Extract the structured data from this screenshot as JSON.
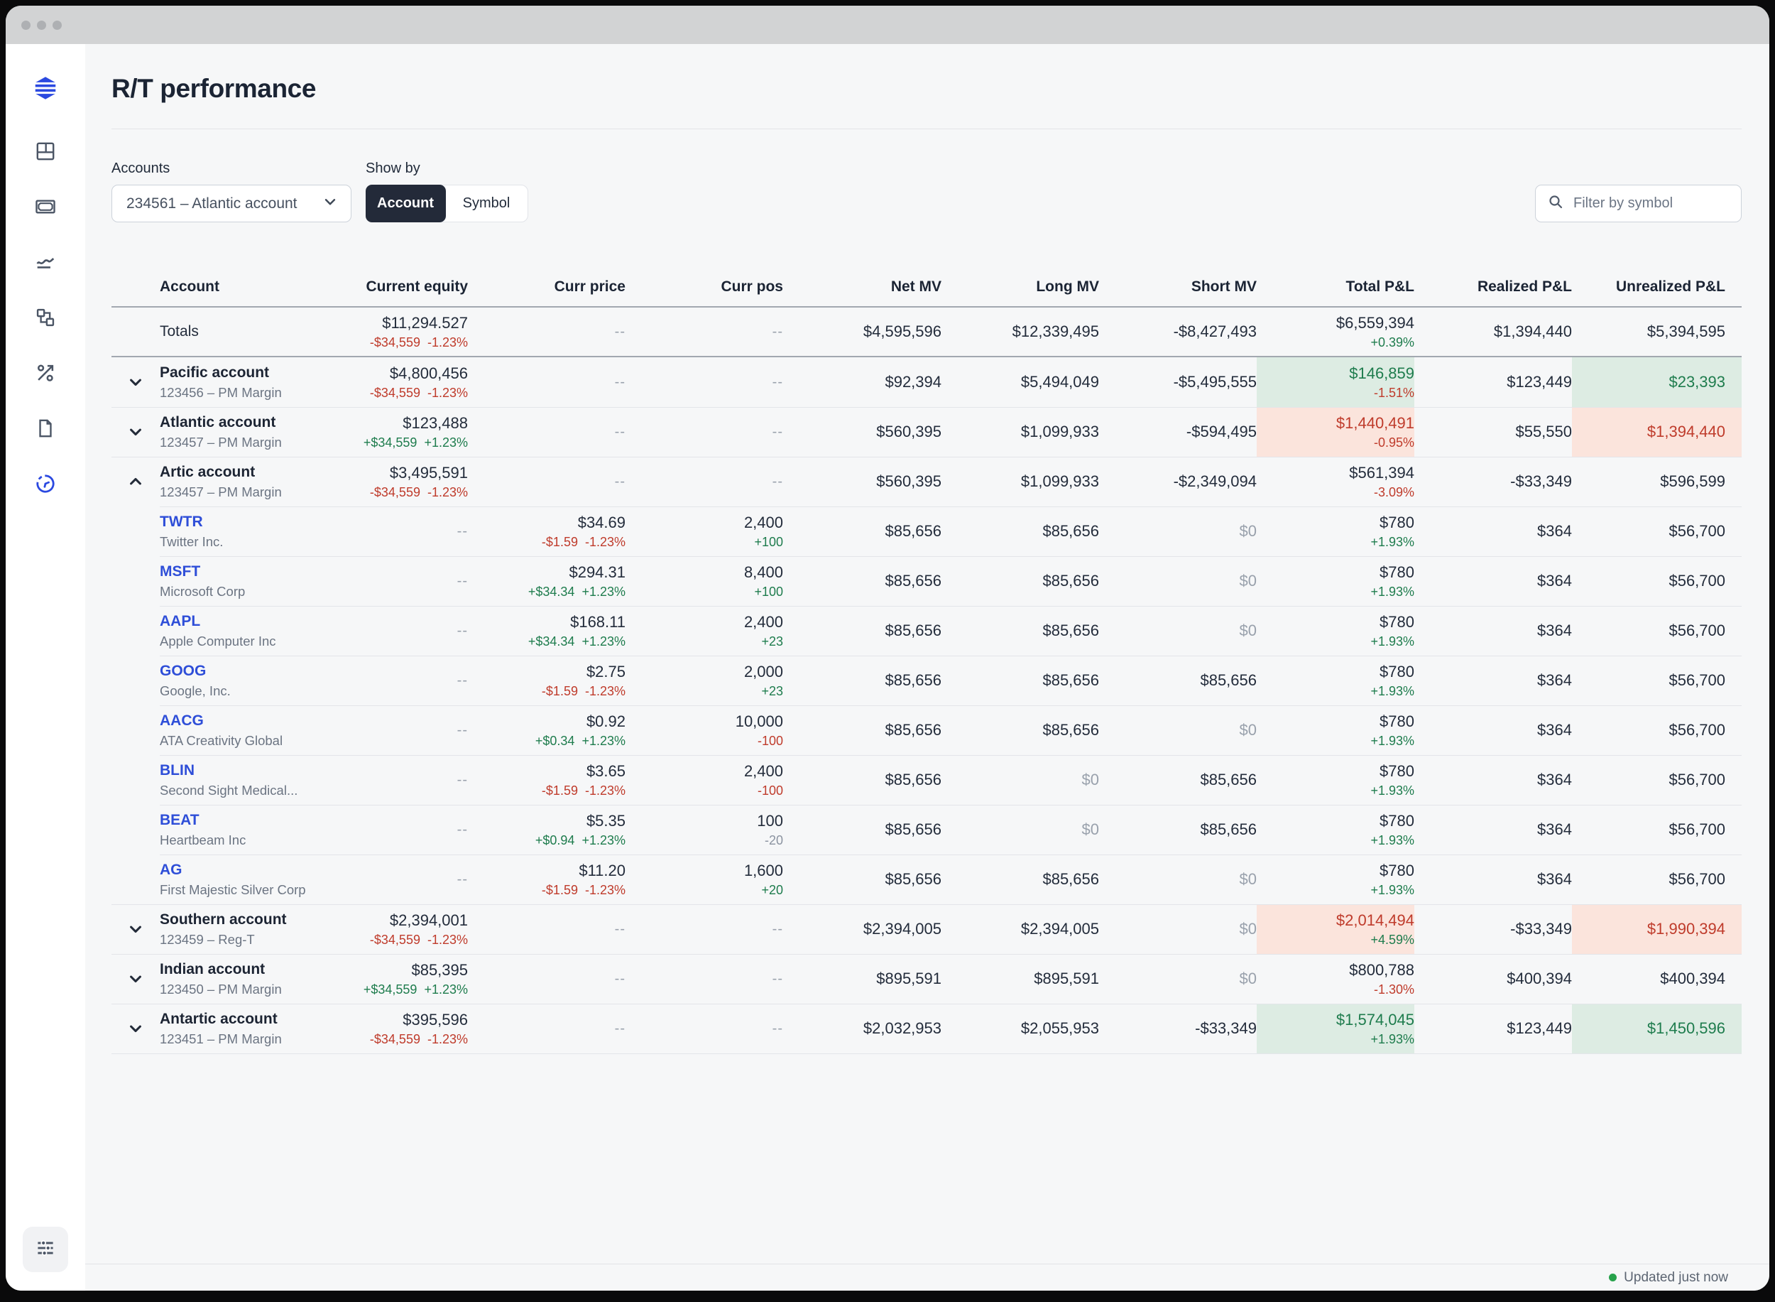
{
  "window": {
    "title_dots": 3
  },
  "header": {
    "title": "R/T performance"
  },
  "sidebar": {
    "icons": [
      "dashboard",
      "cash",
      "performance",
      "blocks",
      "rates",
      "documents",
      "history"
    ],
    "active": "history",
    "bottom_icon": "filters"
  },
  "controls": {
    "accounts_label": "Accounts",
    "accounts_value": "234561 – Atlantic account",
    "show_by_label": "Show by",
    "show_by_options": [
      "Account",
      "Symbol"
    ],
    "show_by_selected": "Account",
    "filter_placeholder": "Filter by symbol"
  },
  "colors": {
    "accent_blue": "#2b49e0",
    "link_blue": "#2e4ed8",
    "positive_green": "#1e7c4d",
    "negative_red": "#bf3b2b",
    "highlight_green_bg": "#ddece3",
    "highlight_red_bg": "#fbe4dc"
  },
  "table": {
    "dash": "--",
    "columns": [
      "Account",
      "Current equity",
      "Curr price",
      "Curr pos",
      "Net MV",
      "Long MV",
      "Short MV",
      "Total P&L",
      "Realized P&L",
      "Unrealized P&L"
    ],
    "rows": [
      {
        "type": "totals",
        "name": "Totals",
        "equity": {
          "main": "$11,294.527",
          "sub": "-$34,559  -1.23%",
          "subTone": "red"
        },
        "price": {
          "dash": true
        },
        "pos": {
          "dash": true
        },
        "net": {
          "v": "$4,595,596"
        },
        "long": {
          "v": "$12,339,495"
        },
        "short": {
          "v": "-$8,427,493"
        },
        "total": {
          "main": "$6,559,394",
          "tone": "dark",
          "sub": "+0.39%",
          "subTone": "green",
          "bg": ""
        },
        "realized": {
          "v": "$1,394,440"
        },
        "unrealized": {
          "v": "$5,394,595",
          "tone": "dark",
          "bg": ""
        }
      },
      {
        "type": "account",
        "name": "Pacific account",
        "subtitle": "123456 – PM Margin",
        "expanded": false,
        "equity": {
          "main": "$4,800,456",
          "sub": "-$34,559  -1.23%",
          "subTone": "red"
        },
        "price": {
          "dash": true
        },
        "pos": {
          "dash": true
        },
        "net": {
          "v": "$92,394"
        },
        "long": {
          "v": "$5,494,049"
        },
        "short": {
          "v": "-$5,495,555"
        },
        "total": {
          "main": "$146,859",
          "tone": "green",
          "sub": "-1.51%",
          "subTone": "red",
          "bg": "green"
        },
        "realized": {
          "v": "$123,449"
        },
        "unrealized": {
          "v": "$23,393",
          "tone": "green",
          "bg": "green"
        }
      },
      {
        "type": "account",
        "name": "Atlantic account",
        "subtitle": "123457 – PM Margin",
        "expanded": false,
        "equity": {
          "main": "$123,488",
          "sub": "+$34,559  +1.23%",
          "subTone": "green"
        },
        "price": {
          "dash": true
        },
        "pos": {
          "dash": true
        },
        "net": {
          "v": "$560,395"
        },
        "long": {
          "v": "$1,099,933"
        },
        "short": {
          "v": "-$594,495"
        },
        "total": {
          "main": "$1,440,491",
          "tone": "red",
          "sub": "-0.95%",
          "subTone": "red",
          "bg": "red"
        },
        "realized": {
          "v": "$55,550"
        },
        "unrealized": {
          "v": "$1,394,440",
          "tone": "red",
          "bg": "red"
        }
      },
      {
        "type": "account",
        "name": "Artic account",
        "subtitle": "123457 – PM Margin",
        "expanded": true,
        "equity": {
          "main": "$3,495,591",
          "sub": "-$34,559  -1.23%",
          "subTone": "red"
        },
        "price": {
          "dash": true
        },
        "pos": {
          "dash": true
        },
        "net": {
          "v": "$560,395"
        },
        "long": {
          "v": "$1,099,933"
        },
        "short": {
          "v": "-$2,349,094"
        },
        "total": {
          "main": "$561,394",
          "tone": "dark",
          "sub": "-3.09%",
          "subTone": "red",
          "bg": ""
        },
        "realized": {
          "v": "-$33,349"
        },
        "unrealized": {
          "v": "$596,599",
          "tone": "dark",
          "bg": ""
        }
      },
      {
        "type": "symbol",
        "ticker": "TWTR",
        "company": "Twitter Inc.",
        "equity": {
          "dash": true
        },
        "price": {
          "main": "$34.69",
          "sub": "-$1.59  -1.23%",
          "subTone": "red"
        },
        "pos": {
          "main": "2,400",
          "sub": "+100",
          "subTone": "green"
        },
        "net": {
          "v": "$85,656"
        },
        "long": {
          "v": "$85,656"
        },
        "short": {
          "v": "$0",
          "muted": true
        },
        "total": {
          "main": "$780",
          "tone": "dark",
          "sub": "+1.93%",
          "subTone": "green",
          "bg": ""
        },
        "realized": {
          "v": "$364"
        },
        "unrealized": {
          "v": "$56,700",
          "tone": "dark",
          "bg": ""
        }
      },
      {
        "type": "symbol",
        "ticker": "MSFT",
        "company": "Microsoft Corp",
        "equity": {
          "dash": true
        },
        "price": {
          "main": "$294.31",
          "sub": "+$34.34  +1.23%",
          "subTone": "green"
        },
        "pos": {
          "main": "8,400",
          "sub": "+100",
          "subTone": "green"
        },
        "net": {
          "v": "$85,656"
        },
        "long": {
          "v": "$85,656"
        },
        "short": {
          "v": "$0",
          "muted": true
        },
        "total": {
          "main": "$780",
          "tone": "dark",
          "sub": "+1.93%",
          "subTone": "green",
          "bg": ""
        },
        "realized": {
          "v": "$364"
        },
        "unrealized": {
          "v": "$56,700",
          "tone": "dark",
          "bg": ""
        }
      },
      {
        "type": "symbol",
        "ticker": "AAPL",
        "company": "Apple Computer Inc",
        "equity": {
          "dash": true
        },
        "price": {
          "main": "$168.11",
          "sub": "+$34.34  +1.23%",
          "subTone": "green"
        },
        "pos": {
          "main": "2,400",
          "sub": "+23",
          "subTone": "green"
        },
        "net": {
          "v": "$85,656"
        },
        "long": {
          "v": "$85,656"
        },
        "short": {
          "v": "$0",
          "muted": true
        },
        "total": {
          "main": "$780",
          "tone": "dark",
          "sub": "+1.93%",
          "subTone": "green",
          "bg": ""
        },
        "realized": {
          "v": "$364"
        },
        "unrealized": {
          "v": "$56,700",
          "tone": "dark",
          "bg": ""
        }
      },
      {
        "type": "symbol",
        "ticker": "GOOG",
        "company": "Google, Inc.",
        "equity": {
          "dash": true
        },
        "price": {
          "main": "$2.75",
          "sub": "-$1.59  -1.23%",
          "subTone": "red"
        },
        "pos": {
          "main": "2,000",
          "sub": "+23",
          "subTone": "green"
        },
        "net": {
          "v": "$85,656"
        },
        "long": {
          "v": "$85,656"
        },
        "short": {
          "v": "$85,656"
        },
        "total": {
          "main": "$780",
          "tone": "dark",
          "sub": "+1.93%",
          "subTone": "green",
          "bg": ""
        },
        "realized": {
          "v": "$364"
        },
        "unrealized": {
          "v": "$56,700",
          "tone": "dark",
          "bg": ""
        }
      },
      {
        "type": "symbol",
        "ticker": "AACG",
        "company": "ATA Creativity Global",
        "equity": {
          "dash": true
        },
        "price": {
          "main": "$0.92",
          "sub": "+$0.34  +1.23%",
          "subTone": "green"
        },
        "pos": {
          "main": "10,000",
          "sub": "-100",
          "subTone": "red"
        },
        "net": {
          "v": "$85,656"
        },
        "long": {
          "v": "$85,656"
        },
        "short": {
          "v": "$0",
          "muted": true
        },
        "total": {
          "main": "$780",
          "tone": "dark",
          "sub": "+1.93%",
          "subTone": "green",
          "bg": ""
        },
        "realized": {
          "v": "$364"
        },
        "unrealized": {
          "v": "$56,700",
          "tone": "dark",
          "bg": ""
        }
      },
      {
        "type": "symbol",
        "ticker": "BLIN",
        "company": "Second Sight Medical...",
        "equity": {
          "dash": true
        },
        "price": {
          "main": "$3.65",
          "sub": "-$1.59  -1.23%",
          "subTone": "red"
        },
        "pos": {
          "main": "2,400",
          "sub": "-100",
          "subTone": "red"
        },
        "net": {
          "v": "$85,656"
        },
        "long": {
          "v": "$0",
          "muted": true
        },
        "short": {
          "v": "$85,656"
        },
        "total": {
          "main": "$780",
          "tone": "dark",
          "sub": "+1.93%",
          "subTone": "green",
          "bg": ""
        },
        "realized": {
          "v": "$364"
        },
        "unrealized": {
          "v": "$56,700",
          "tone": "dark",
          "bg": ""
        }
      },
      {
        "type": "symbol",
        "ticker": "BEAT",
        "company": "Heartbeam Inc",
        "equity": {
          "dash": true
        },
        "price": {
          "main": "$5.35",
          "sub": "+$0.94  +1.23%",
          "subTone": "green"
        },
        "pos": {
          "main": "100",
          "sub": "-20",
          "subTone": "gray"
        },
        "net": {
          "v": "$85,656"
        },
        "long": {
          "v": "$0",
          "muted": true
        },
        "short": {
          "v": "$85,656"
        },
        "total": {
          "main": "$780",
          "tone": "dark",
          "sub": "+1.93%",
          "subTone": "green",
          "bg": ""
        },
        "realized": {
          "v": "$364"
        },
        "unrealized": {
          "v": "$56,700",
          "tone": "dark",
          "bg": ""
        }
      },
      {
        "type": "symbol",
        "ticker": "AG",
        "company": "First Majestic Silver Corp",
        "equity": {
          "dash": true
        },
        "price": {
          "main": "$11.20",
          "sub": "-$1.59  -1.23%",
          "subTone": "red"
        },
        "pos": {
          "main": "1,600",
          "sub": "+20",
          "subTone": "green"
        },
        "net": {
          "v": "$85,656"
        },
        "long": {
          "v": "$85,656"
        },
        "short": {
          "v": "$0",
          "muted": true
        },
        "total": {
          "main": "$780",
          "tone": "dark",
          "sub": "+1.93%",
          "subTone": "green",
          "bg": ""
        },
        "realized": {
          "v": "$364"
        },
        "unrealized": {
          "v": "$56,700",
          "tone": "dark",
          "bg": ""
        }
      },
      {
        "type": "account",
        "name": "Southern account",
        "subtitle": "123459 – Reg-T",
        "expanded": false,
        "equity": {
          "main": "$2,394,001",
          "sub": "-$34,559  -1.23%",
          "subTone": "red"
        },
        "price": {
          "dash": true
        },
        "pos": {
          "dash": true
        },
        "net": {
          "v": "$2,394,005"
        },
        "long": {
          "v": "$2,394,005"
        },
        "short": {
          "v": "$0",
          "muted": true
        },
        "total": {
          "main": "$2,014,494",
          "tone": "red",
          "sub": "+4.59%",
          "subTone": "green",
          "bg": "red"
        },
        "realized": {
          "v": "-$33,349"
        },
        "unrealized": {
          "v": "$1,990,394",
          "tone": "red",
          "bg": "red"
        }
      },
      {
        "type": "account",
        "name": "Indian account",
        "subtitle": "123450 – PM Margin",
        "expanded": false,
        "equity": {
          "main": "$85,395",
          "sub": "+$34,559  +1.23%",
          "subTone": "green"
        },
        "price": {
          "dash": true
        },
        "pos": {
          "dash": true
        },
        "net": {
          "v": "$895,591"
        },
        "long": {
          "v": "$895,591"
        },
        "short": {
          "v": "$0",
          "muted": true
        },
        "total": {
          "main": "$800,788",
          "tone": "dark",
          "sub": "-1.30%",
          "subTone": "red",
          "bg": ""
        },
        "realized": {
          "v": "$400,394"
        },
        "unrealized": {
          "v": "$400,394",
          "tone": "dark",
          "bg": ""
        }
      },
      {
        "type": "account",
        "name": "Antartic account",
        "subtitle": "123451 – PM Margin",
        "expanded": false,
        "equity": {
          "main": "$395,596",
          "sub": "-$34,559  -1.23%",
          "subTone": "red"
        },
        "price": {
          "dash": true
        },
        "pos": {
          "dash": true
        },
        "net": {
          "v": "$2,032,953"
        },
        "long": {
          "v": "$2,055,953"
        },
        "short": {
          "v": "-$33,349"
        },
        "total": {
          "main": "$1,574,045",
          "tone": "green",
          "sub": "+1.93%",
          "subTone": "green",
          "bg": "green"
        },
        "realized": {
          "v": "$123,449"
        },
        "unrealized": {
          "v": "$1,450,596",
          "tone": "green",
          "bg": "green"
        }
      }
    ]
  },
  "footer": {
    "status": "Updated just now"
  }
}
